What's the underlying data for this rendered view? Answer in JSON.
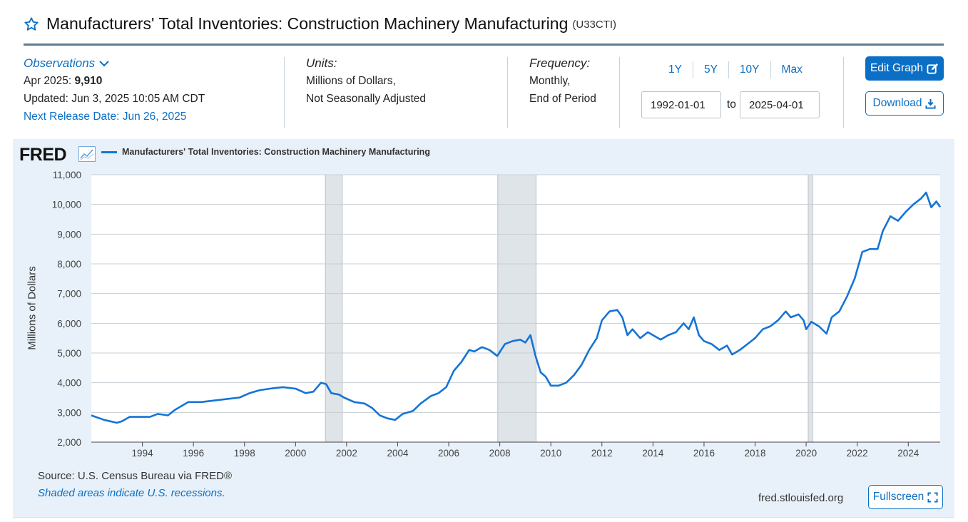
{
  "header": {
    "title": "Manufacturers' Total Inventories: Construction Machinery Manufacturing",
    "series_id": "(U33CTI)",
    "favorite_icon": "star-outline-icon"
  },
  "observations": {
    "label": "Observations",
    "latest_period": "Apr 2025:",
    "latest_value": "9,910",
    "updated": "Updated: Jun 3, 2025 10:05 AM CDT",
    "next_release": "Next Release Date: Jun 26, 2025"
  },
  "units": {
    "label": "Units:",
    "line1": "Millions of Dollars,",
    "line2": "Not Seasonally Adjusted"
  },
  "frequency": {
    "label": "Frequency:",
    "line1": "Monthly,",
    "line2": "End of Period"
  },
  "range": {
    "buttons": [
      "1Y",
      "5Y",
      "10Y",
      "Max"
    ],
    "start": "1992-01-01",
    "to_label": "to",
    "end": "2025-04-01"
  },
  "actions": {
    "edit_graph": "Edit Graph",
    "download": "Download",
    "fullscreen": "Fullscreen"
  },
  "footer": {
    "source": "Source: U.S. Census Bureau via FRED®",
    "shaded_note": "Shaded areas indicate U.S. recessions.",
    "url": "fred.stlouisfed.org"
  },
  "branding": {
    "logo_text": "FRED"
  },
  "colors": {
    "line": "#1474d6",
    "recession": "#dfe4e9",
    "accent": "#0b6fc5"
  },
  "chart_data": {
    "type": "line",
    "title": "",
    "xlabel": "",
    "ylabel": "Millions of Dollars",
    "xlim": [
      1992.0,
      2025.25
    ],
    "ylim": [
      2000,
      11000
    ],
    "y_ticks": [
      2000,
      3000,
      4000,
      5000,
      6000,
      7000,
      8000,
      9000,
      10000,
      11000
    ],
    "y_tick_labels": [
      "2,000",
      "3,000",
      "4,000",
      "5,000",
      "6,000",
      "7,000",
      "8,000",
      "9,000",
      "10,000",
      "11,000"
    ],
    "x_ticks": [
      1994,
      1996,
      1998,
      2000,
      2002,
      2004,
      2006,
      2008,
      2010,
      2012,
      2014,
      2016,
      2018,
      2020,
      2022,
      2024
    ],
    "grid": true,
    "legend": "top-left",
    "recessions": [
      [
        2001.17,
        2001.83
      ],
      [
        2007.92,
        2009.42
      ],
      [
        2020.08,
        2020.25
      ]
    ],
    "series": [
      {
        "name": "Manufacturers' Total Inventories: Construction Machinery Manufacturing",
        "x": [
          1992.0,
          1992.5,
          1993.0,
          1993.2,
          1993.5,
          1993.8,
          1994.3,
          1994.6,
          1995.0,
          1995.3,
          1995.8,
          1996.3,
          1996.8,
          1997.3,
          1997.8,
          1998.2,
          1998.6,
          1999.0,
          1999.5,
          2000.0,
          2000.4,
          2000.7,
          2001.0,
          2001.2,
          2001.4,
          2001.7,
          2001.9,
          2002.3,
          2002.7,
          2003.0,
          2003.3,
          2003.6,
          2003.9,
          2004.2,
          2004.6,
          2004.9,
          2005.3,
          2005.6,
          2005.9,
          2006.2,
          2006.5,
          2006.8,
          2007.0,
          2007.3,
          2007.6,
          2007.9,
          2008.2,
          2008.5,
          2008.8,
          2009.0,
          2009.2,
          2009.4,
          2009.6,
          2009.8,
          2010.0,
          2010.3,
          2010.6,
          2010.9,
          2011.2,
          2011.5,
          2011.8,
          2012.0,
          2012.3,
          2012.6,
          2012.8,
          2013.0,
          2013.2,
          2013.5,
          2013.8,
          2014.0,
          2014.3,
          2014.6,
          2014.9,
          2015.2,
          2015.4,
          2015.6,
          2015.8,
          2016.0,
          2016.3,
          2016.6,
          2016.9,
          2017.1,
          2017.4,
          2017.7,
          2018.0,
          2018.3,
          2018.6,
          2018.9,
          2019.2,
          2019.4,
          2019.7,
          2019.9,
          2020.0,
          2020.2,
          2020.5,
          2020.8,
          2021.0,
          2021.3,
          2021.6,
          2021.9,
          2022.2,
          2022.5,
          2022.8,
          2023.0,
          2023.3,
          2023.6,
          2023.9,
          2024.2,
          2024.5,
          2024.7,
          2024.9,
          2025.1,
          2025.25
        ],
        "values": [
          2900,
          2750,
          2650,
          2700,
          2850,
          2850,
          2850,
          2950,
          2900,
          3100,
          3350,
          3350,
          3400,
          3450,
          3500,
          3650,
          3750,
          3800,
          3850,
          3800,
          3650,
          3700,
          4000,
          3950,
          3650,
          3600,
          3500,
          3350,
          3300,
          3150,
          2900,
          2800,
          2750,
          2950,
          3050,
          3300,
          3550,
          3650,
          3850,
          4400,
          4700,
          5100,
          5050,
          5200,
          5100,
          4900,
          5300,
          5400,
          5450,
          5350,
          5600,
          4900,
          4350,
          4200,
          3900,
          3900,
          4000,
          4250,
          4600,
          5100,
          5500,
          6100,
          6400,
          6450,
          6200,
          5600,
          5800,
          5500,
          5700,
          5600,
          5450,
          5600,
          5700,
          6000,
          5800,
          6200,
          5600,
          5400,
          5300,
          5100,
          5250,
          4950,
          5100,
          5300,
          5500,
          5800,
          5900,
          6100,
          6400,
          6200,
          6300,
          6100,
          5800,
          6050,
          5900,
          5650,
          6200,
          6400,
          6900,
          7500,
          8400,
          8500,
          8500,
          9100,
          9600,
          9450,
          9750,
          10000,
          10200,
          10400,
          9900,
          10100,
          9910
        ]
      }
    ]
  }
}
